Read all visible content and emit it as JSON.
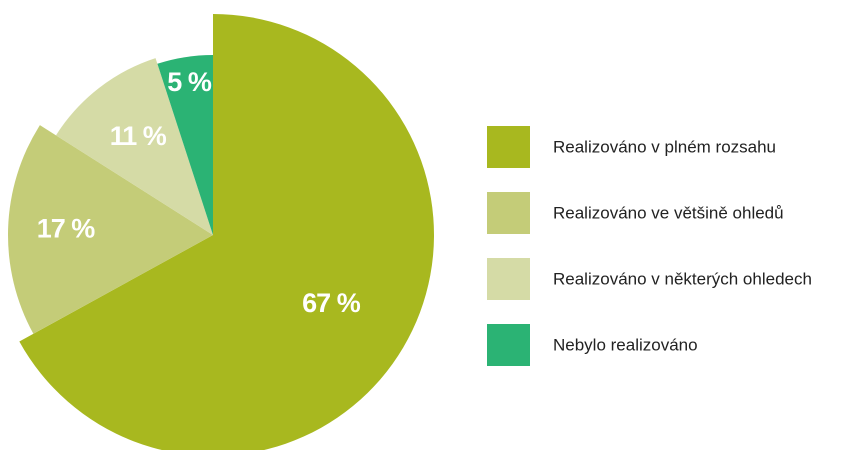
{
  "chart_data": {
    "type": "pie",
    "categories": [
      "Realizováno v plném rozsahu",
      "Realizováno ve většině ohledů",
      "Realizováno v některých ohledech",
      "Nebylo realizováno"
    ],
    "values": [
      67,
      17,
      11,
      5
    ],
    "value_labels": [
      "67 %",
      "17 %",
      "11 %",
      "5 %"
    ],
    "colors": [
      "#a8b81f",
      "#c4cc78",
      "#d5dba6",
      "#2bb374"
    ]
  }
}
